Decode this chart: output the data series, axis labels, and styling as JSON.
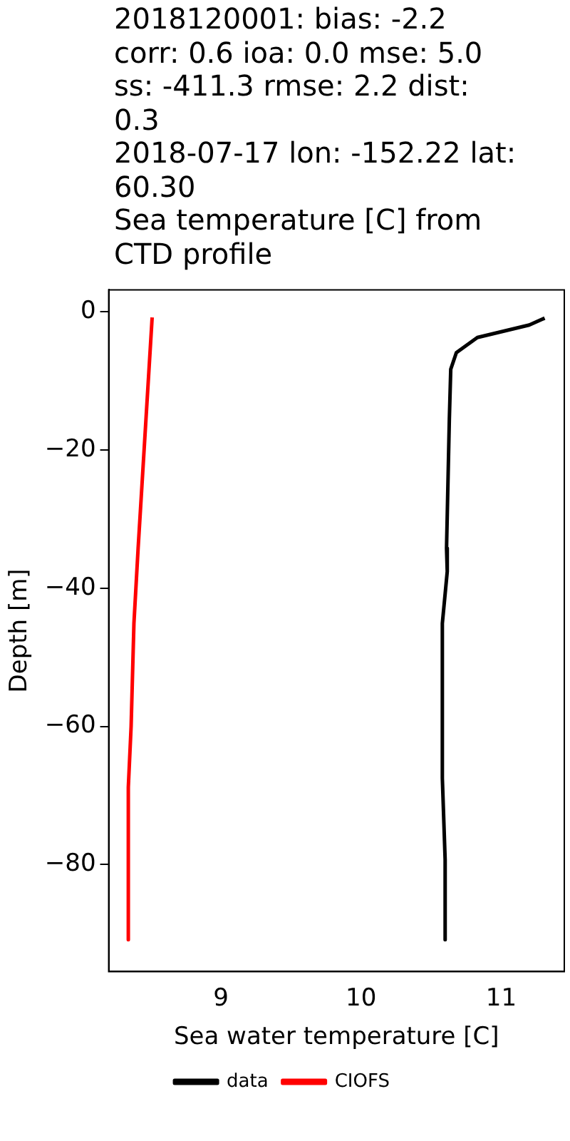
{
  "chart_data": {
    "type": "line",
    "title": "2018120001: bias: -2.2\ncorr: 0.6  ioa: 0.0  mse: 5.0\nss: -411.3  rmse: 2.2  dist:\n0.3\n2018-07-17 lon: -152.22 lat:\n60.30\nSea temperature [C] from\nCTD profile",
    "xlabel": "Sea water temperature [C]",
    "ylabel": "Depth [m]",
    "series": [
      {
        "name": "data",
        "color": "#000000",
        "x": [
          11.31,
          11.2,
          10.83,
          10.68,
          10.64,
          10.63,
          10.61,
          10.615,
          10.58,
          10.58,
          10.6,
          10.6
        ],
        "values": [
          -0.9,
          -1.9,
          -3.7,
          -5.9,
          -8.3,
          -15.5,
          -34.2,
          -37.6,
          -45.1,
          -67.5,
          -79.3,
          -90.9
        ]
      },
      {
        "name": "CIOFS",
        "color": "#ff0000",
        "x": [
          8.51,
          8.41,
          8.38,
          8.36,
          8.34,
          8.34
        ],
        "values": [
          -0.8,
          -34.2,
          -45.1,
          -60,
          -68.8,
          -90.9
        ]
      }
    ],
    "xlim": [
      8.2,
      11.45
    ],
    "ylim": [
      -95.5,
      3.2
    ],
    "xticks": [
      9,
      10,
      11
    ],
    "yticks": [
      0,
      -20,
      -40,
      -60,
      -80
    ],
    "grid": false,
    "legend": "bottom",
    "marker": "none",
    "line_style": "solid"
  }
}
